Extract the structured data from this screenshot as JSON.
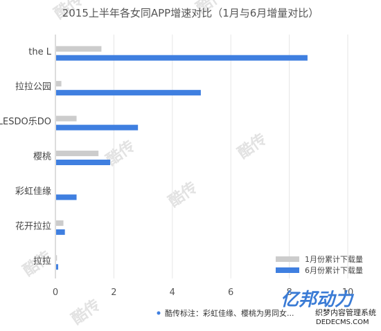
{
  "chart_data": {
    "type": "bar",
    "orientation": "horizontal",
    "title": "2015上半年各女同APP增速对比（1月与6月增量对比）",
    "categories": [
      "the L",
      "拉拉公园",
      "LESDO乐DO",
      "樱桃",
      "彩虹佳缘",
      "花开拉拉",
      "拉拉"
    ],
    "series": [
      {
        "name": "1月份累计下载量",
        "color": "#cccccc",
        "values": [
          1.55,
          0.18,
          0.7,
          1.45,
          0.0,
          0.25,
          0.03
        ]
      },
      {
        "name": "6月份累计下载量",
        "color": "#3f7fe0",
        "values": [
          8.6,
          4.95,
          2.8,
          1.85,
          0.7,
          0.3,
          0.07
        ]
      }
    ],
    "xlim": [
      0,
      10
    ],
    "xticks": [
      "0",
      "2",
      "4",
      "6",
      "8",
      "10"
    ],
    "xlabel": "",
    "ylabel": "",
    "grid": true,
    "legend_position": "bottom-right",
    "footnote": "酷传标注：彩虹佳缘、樱桃为男同女..."
  },
  "watermark": {
    "text": "酷传",
    "logo": "亿邦动力",
    "logo_sub": "织梦内容管理系统",
    "logo_url": "DEDECMS.COM"
  }
}
